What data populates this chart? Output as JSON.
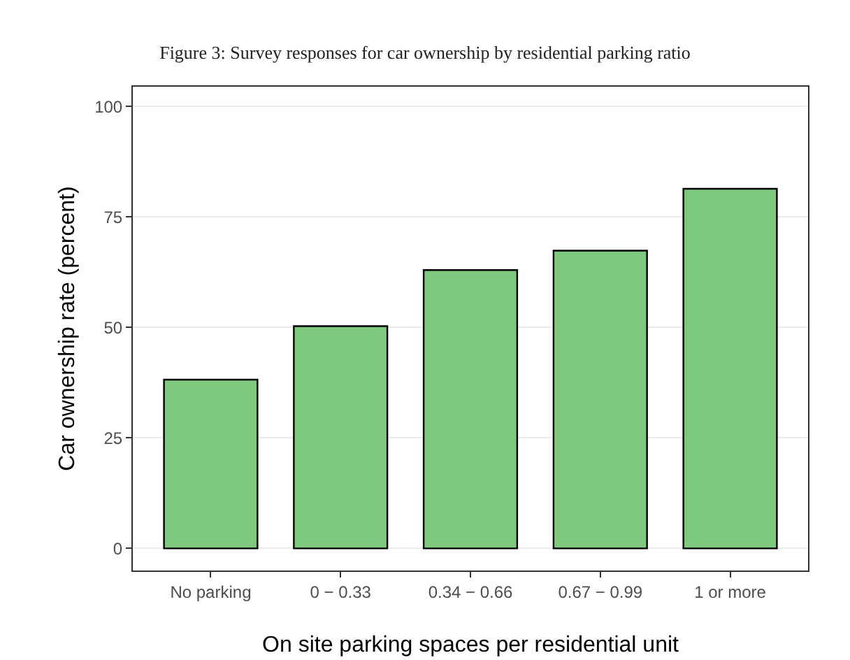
{
  "chart_data": {
    "type": "bar",
    "title": "Figure 3: Survey responses for car ownership by residential parking ratio",
    "xlabel": "On site parking spaces per residential unit",
    "ylabel": "Car ownership rate (percent)",
    "categories": [
      "No parking",
      "0 − 0.33",
      "0.34 − 0.66",
      "0.67 − 0.99",
      "1 or more"
    ],
    "values": [
      38.2,
      50.3,
      63,
      67.4,
      81.4
    ],
    "color": "#7fc97f",
    "ylim": [
      -5,
      104.5
    ],
    "yticks": [
      0,
      25,
      50,
      75,
      100
    ],
    "grid": "y"
  }
}
